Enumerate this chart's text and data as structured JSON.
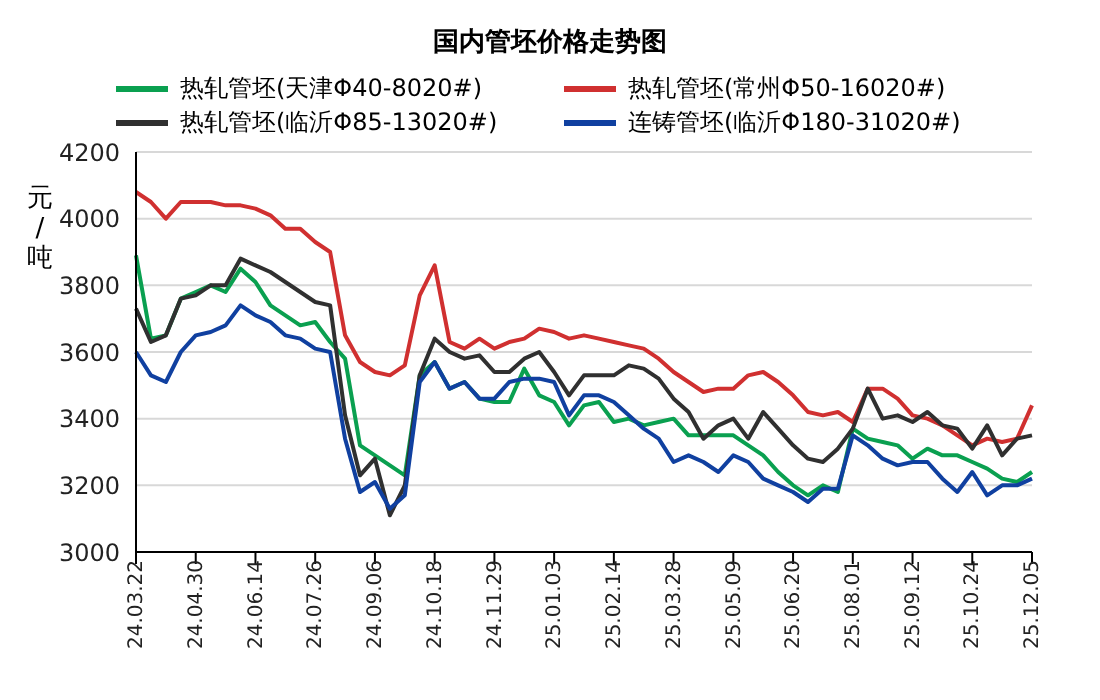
{
  "chart_data": {
    "type": "line",
    "title": "国内管坯价格走势图",
    "ylabel": "元/吨",
    "categories": [
      "24.03.22",
      null,
      null,
      null,
      "24.04.30",
      null,
      null,
      null,
      "24.06.14",
      null,
      null,
      null,
      "24.07.26",
      null,
      null,
      null,
      "24.09.06",
      null,
      null,
      null,
      "24.10.18",
      null,
      null,
      null,
      "24.11.29",
      null,
      null,
      null,
      "25.01.03",
      null,
      null,
      null,
      "25.02.14",
      null,
      null,
      null,
      "25.03.28",
      null,
      null,
      null,
      "25.05.09",
      null,
      null,
      null,
      "25.06.20",
      null,
      null,
      null,
      "25.08.01",
      null,
      null,
      null,
      "25.09.12",
      null,
      null,
      null,
      "25.10.24",
      null,
      null,
      null,
      "25.12.05"
    ],
    "series": [
      {
        "name": "热轧管坯(天津Φ40-8020#)",
        "color": "#0aa050",
        "values": [
          3890,
          3640,
          3650,
          3760,
          3780,
          3800,
          3780,
          3850,
          3810,
          3740,
          3710,
          3680,
          3690,
          3630,
          3580,
          3320,
          3290,
          3260,
          3230,
          3530,
          3570,
          3490,
          3510,
          3460,
          3450,
          3450,
          3550,
          3470,
          3450,
          3380,
          3440,
          3450,
          3390,
          3400,
          3380,
          3390,
          3400,
          3350,
          3350,
          3350,
          3350,
          3320,
          3290,
          3240,
          3200,
          3170,
          3200,
          3180,
          3370,
          3340,
          3330,
          3320,
          3280,
          3310,
          3290,
          3290,
          3270,
          3250,
          3220,
          3210,
          3240
        ]
      },
      {
        "name": "热轧管坯(常州Φ50-16020#)",
        "color": "#d03030",
        "values": [
          4080,
          4050,
          4000,
          4050,
          4050,
          4050,
          4040,
          4040,
          4030,
          4010,
          3970,
          3970,
          3930,
          3900,
          3650,
          3570,
          3540,
          3530,
          3560,
          3770,
          3860,
          3630,
          3610,
          3640,
          3610,
          3630,
          3640,
          3670,
          3660,
          3640,
          3650,
          3640,
          3630,
          3620,
          3610,
          3580,
          3540,
          3510,
          3480,
          3490,
          3490,
          3530,
          3540,
          3510,
          3470,
          3420,
          3410,
          3420,
          3390,
          3490,
          3490,
          3460,
          3410,
          3400,
          3380,
          3350,
          3320,
          3340,
          3330,
          3340,
          3440
        ]
      },
      {
        "name": "热轧管坯(临沂Φ85-13020#)",
        "color": "#303030",
        "values": [
          3730,
          3630,
          3650,
          3760,
          3770,
          3800,
          3800,
          3880,
          3860,
          3840,
          3810,
          3780,
          3750,
          3740,
          3410,
          3230,
          3280,
          3110,
          3200,
          3530,
          3640,
          3600,
          3580,
          3590,
          3540,
          3540,
          3580,
          3600,
          3540,
          3470,
          3530,
          3530,
          3530,
          3560,
          3550,
          3520,
          3460,
          3420,
          3340,
          3380,
          3400,
          3340,
          3420,
          3370,
          3320,
          3280,
          3270,
          3310,
          3370,
          3490,
          3400,
          3410,
          3390,
          3420,
          3380,
          3370,
          3310,
          3380,
          3290,
          3340,
          3350
        ]
      },
      {
        "name": "连铸管坯(临沂Φ180-31020#)",
        "color": "#1040a0",
        "values": [
          3600,
          3530,
          3510,
          3600,
          3650,
          3660,
          3680,
          3740,
          3710,
          3690,
          3650,
          3640,
          3610,
          3600,
          3340,
          3180,
          3210,
          3130,
          3170,
          3510,
          3570,
          3490,
          3510,
          3460,
          3460,
          3510,
          3520,
          3520,
          3510,
          3410,
          3470,
          3470,
          3450,
          3410,
          3370,
          3340,
          3270,
          3290,
          3270,
          3240,
          3290,
          3270,
          3220,
          3200,
          3180,
          3150,
          3190,
          3190,
          3350,
          3320,
          3280,
          3260,
          3270,
          3270,
          3220,
          3180,
          3240,
          3170,
          3200,
          3200,
          3220
        ]
      }
    ],
    "ylim": [
      3000,
      4200
    ],
    "yticks": [
      3000,
      3200,
      3400,
      3600,
      3800,
      4000,
      4200
    ],
    "grid": "y",
    "legend": "top",
    "marker": "none",
    "line_style": "solid"
  }
}
